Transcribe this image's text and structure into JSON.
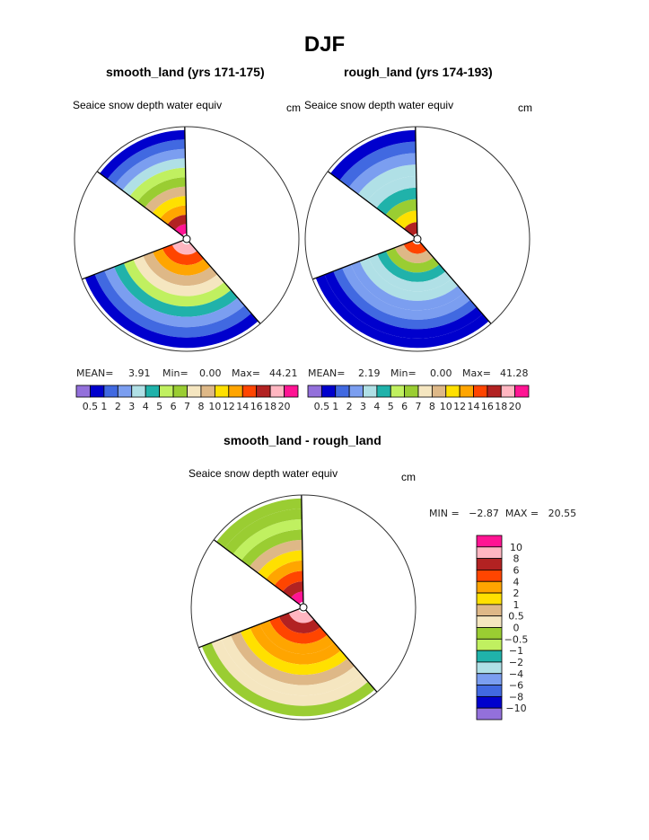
{
  "page": {
    "title": "DJF",
    "panels": [
      {
        "title": "smooth_land (yrs 171-175)",
        "variable": "Seaice snow depth water equiv",
        "units": "cm",
        "stats": {
          "mean_label": "MEAN=",
          "mean": "3.91",
          "min_label": "Min=",
          "min": "0.00",
          "max_label": "Max=",
          "max": "44.21"
        }
      },
      {
        "title": "rough_land (yrs 174-193)",
        "variable": "Seaice snow depth water equiv",
        "units": "cm",
        "stats": {
          "mean_label": "MEAN=",
          "mean": "2.19",
          "min_label": "Min=",
          "min": "0.00",
          "max_label": "Max=",
          "max": "41.28"
        }
      },
      {
        "title": "smooth_land - rough_land",
        "variable": "Seaice snow depth water equiv",
        "units": "cm",
        "stats_text": "MIN =   −2.87  MAX =   20.55"
      }
    ]
  },
  "chart_data": [
    {
      "type": "heatmap",
      "projection": "polar",
      "title": "smooth_land (yrs 171-175)",
      "variable": "Seaice snow depth water equiv",
      "units": "cm",
      "sectors_deg": [
        [
          91,
          143
        ],
        [
          201,
          311
        ]
      ],
      "legend": {
        "placement": "bottom",
        "levels": [
          "0.5",
          "1",
          "2",
          "3",
          "4",
          "5",
          "6",
          "7",
          "8",
          "10",
          "12",
          "14",
          "16",
          "18",
          "20"
        ],
        "colors": [
          "#9370db",
          "#0000cd",
          "#4169e1",
          "#7b9ef0",
          "#b0e0e6",
          "#20b2aa",
          "#c0f060",
          "#9acd32",
          "#f5e6c0",
          "#deb887",
          "#ffe000",
          "#ffa500",
          "#ff4500",
          "#b22222",
          "#ffb6c1",
          "#ff1493"
        ]
      },
      "rings": {
        "sector_1": [
          20,
          16,
          12,
          10,
          8,
          6,
          5,
          3,
          2,
          1,
          0.5
        ],
        "sector_2": [
          18,
          14,
          12,
          8,
          7,
          5,
          4,
          2,
          1,
          0.5
        ]
      },
      "stats": {
        "mean": 3.91,
        "min": 0.0,
        "max": 44.21
      }
    },
    {
      "type": "heatmap",
      "projection": "polar",
      "title": "rough_land (yrs 174-193)",
      "variable": "Seaice snow depth water equiv",
      "units": "cm",
      "sectors_deg": [
        [
          91,
          143
        ],
        [
          201,
          311
        ]
      ],
      "legend": {
        "placement": "bottom",
        "levels": [
          "0.5",
          "1",
          "2",
          "3",
          "4",
          "5",
          "6",
          "7",
          "8",
          "10",
          "12",
          "14",
          "16",
          "18",
          "20"
        ],
        "colors": [
          "#9370db",
          "#0000cd",
          "#4169e1",
          "#7b9ef0",
          "#b0e0e6",
          "#20b2aa",
          "#c0f060",
          "#9acd32",
          "#f5e6c0",
          "#deb887",
          "#ffe000",
          "#ffa500",
          "#ff4500",
          "#b22222",
          "#ffb6c1",
          "#ff1493"
        ]
      },
      "rings": {
        "sector_1": [
          16,
          10,
          6,
          4,
          3,
          3,
          2,
          1,
          0.5
        ],
        "sector_2": [
          14,
          8,
          6,
          4,
          3,
          3,
          2,
          2,
          1,
          0.5,
          0.5
        ]
      },
      "stats": {
        "mean": 2.19,
        "min": 0.0,
        "max": 41.28
      }
    },
    {
      "type": "heatmap",
      "projection": "polar",
      "title": "smooth_land - rough_land",
      "variable": "Seaice snow depth water equiv",
      "units": "cm",
      "sectors_deg": [
        [
          91,
          143
        ],
        [
          201,
          311
        ]
      ],
      "legend": {
        "placement": "right",
        "levels": [
          "10",
          "8",
          "6",
          "4",
          "2",
          "1",
          "0.5",
          "0",
          "−0.5",
          "−1",
          "−2",
          "−4",
          "−6",
          "−8",
          "−10"
        ],
        "colors": [
          "#ff1493",
          "#ffb6c1",
          "#b22222",
          "#ff4500",
          "#ffa500",
          "#ffe000",
          "#deb887",
          "#f5e6c0",
          "#9acd32",
          "#c0f060",
          "#20b2aa",
          "#b0e0e6",
          "#7b9ef0",
          "#4169e1",
          "#0000cd",
          "#9370db"
        ]
      },
      "rings": {
        "sector_1": [
          10,
          6,
          4,
          2,
          1,
          0.5,
          -0.5,
          -1,
          -0.5,
          -0.5
        ],
        "sector_2": [
          8,
          6,
          4,
          2,
          2,
          1,
          0.5,
          0,
          0,
          -0.5
        ]
      },
      "stats": {
        "min": -2.87,
        "max": 20.55
      }
    }
  ]
}
